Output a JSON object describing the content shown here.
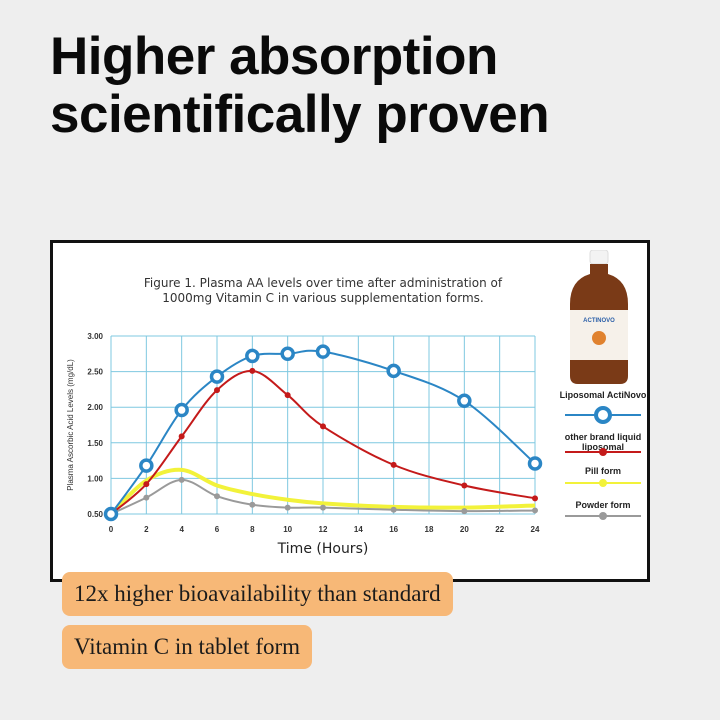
{
  "headline": "Higher absorption scientifically proven",
  "badges": [
    "12x higher bioavailability than standard",
    "Vitamin C in tablet form"
  ],
  "product": {
    "label": "ACTINOVO"
  },
  "chart_data": {
    "type": "line",
    "title": "Figure 1. Plasma AA levels over time after administration of 1000mg Vitamin C in various supplementation forms.",
    "title_lines": [
      "Figure 1. Plasma AA levels over time after administration of",
      "1000mg Vitamin C in various supplementation forms."
    ],
    "xlabel": "Time (Hours)",
    "ylabel": "Plasma Ascorbic Acid Levels (mg/dL)",
    "xlim": [
      0,
      24
    ],
    "ylim": [
      0.5,
      3.0
    ],
    "xticks": [
      0,
      2,
      4,
      6,
      8,
      10,
      12,
      14,
      16,
      18,
      20,
      22,
      24
    ],
    "yticks": [
      "0.50",
      "1.00",
      "1.50",
      "2.00",
      "2.50",
      "3.00"
    ],
    "grid": true,
    "legend_position": "right",
    "series": [
      {
        "name": "Liposomal ActiNovo",
        "color": "#2b86c5",
        "x": [
          0,
          2,
          4,
          6,
          8,
          10,
          12,
          16,
          20,
          24
        ],
        "values": [
          0.5,
          1.18,
          1.96,
          2.43,
          2.72,
          2.75,
          2.78,
          2.51,
          2.09,
          1.21
        ]
      },
      {
        "name": "other brand liquid liposomal",
        "color": "#c41a1a",
        "x": [
          0,
          2,
          4,
          6,
          8,
          10,
          12,
          16,
          20,
          24
        ],
        "values": [
          0.5,
          0.92,
          1.59,
          2.24,
          2.51,
          2.17,
          1.73,
          1.19,
          0.9,
          0.72
        ]
      },
      {
        "name": "Pill form",
        "color": "#f2f23a",
        "x": [
          0,
          2,
          4,
          6,
          8,
          10,
          12,
          16,
          20,
          24
        ],
        "values": [
          0.5,
          0.97,
          1.12,
          0.9,
          0.78,
          0.7,
          0.65,
          0.6,
          0.59,
          0.62
        ]
      },
      {
        "name": "Powder form",
        "color": "#9a9a9a",
        "x": [
          0,
          2,
          4,
          6,
          8,
          10,
          12,
          16,
          20,
          24
        ],
        "values": [
          0.5,
          0.73,
          0.98,
          0.75,
          0.63,
          0.59,
          0.59,
          0.56,
          0.54,
          0.55
        ]
      }
    ]
  }
}
